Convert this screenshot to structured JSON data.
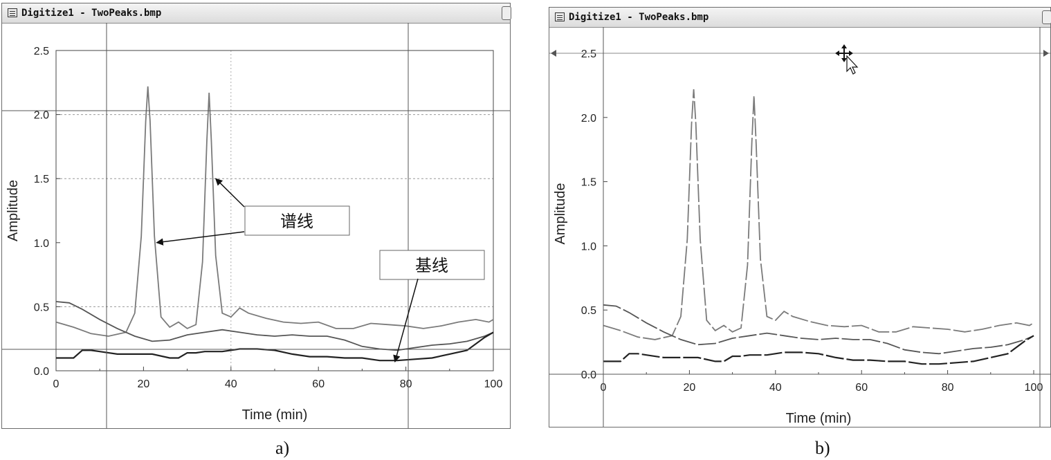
{
  "windows": [
    {
      "title": "Digitize1 - TwoPeaks.bmp",
      "caption": "a)",
      "annotations": {
        "spectral_line": "谱线",
        "baseline": "基线"
      }
    },
    {
      "title": "Digitize1 - TwoPeaks.bmp",
      "caption": "b)"
    }
  ],
  "chart_data": [
    {
      "type": "line",
      "xlabel": "Time (min)",
      "ylabel": "Amplitude",
      "xlim": [
        0,
        100
      ],
      "ylim": [
        0,
        2.5
      ],
      "x_ticks": [
        "0",
        "20",
        "40",
        "60",
        "80",
        "100"
      ],
      "y_ticks": [
        "0.0",
        "0.5",
        "1.0",
        "1.5",
        "2.0",
        "2.5"
      ],
      "grid": "dashed at y=0.5,1.5,2.0 and x=40",
      "series": [
        {
          "x": [
            0,
            4,
            8,
            12,
            16,
            18,
            19.5,
            20.5,
            21,
            21.5,
            22.5,
            24,
            26,
            28,
            30,
            32,
            33.5,
            34.5,
            35,
            35.5,
            36.5,
            38,
            40,
            42,
            44,
            48,
            52,
            56,
            60,
            64,
            68,
            72,
            76,
            80,
            84,
            88,
            92,
            96,
            99,
            100
          ],
          "y": [
            0.38,
            0.34,
            0.29,
            0.27,
            0.3,
            0.45,
            1.05,
            1.95,
            2.22,
            1.95,
            1.05,
            0.42,
            0.34,
            0.38,
            0.33,
            0.36,
            0.85,
            1.8,
            2.17,
            1.8,
            0.9,
            0.45,
            0.42,
            0.49,
            0.45,
            0.41,
            0.38,
            0.37,
            0.38,
            0.33,
            0.33,
            0.37,
            0.36,
            0.35,
            0.33,
            0.35,
            0.38,
            0.4,
            0.38,
            0.4
          ]
        },
        {
          "x": [
            0,
            3,
            6,
            10,
            14,
            18,
            22,
            26,
            30,
            34,
            38,
            42,
            46,
            50,
            54,
            58,
            62,
            66,
            70,
            74,
            78,
            82,
            86,
            90,
            94,
            98,
            100
          ],
          "y": [
            0.54,
            0.53,
            0.48,
            0.4,
            0.33,
            0.27,
            0.23,
            0.24,
            0.28,
            0.3,
            0.32,
            0.3,
            0.28,
            0.27,
            0.28,
            0.27,
            0.27,
            0.24,
            0.19,
            0.17,
            0.16,
            0.18,
            0.2,
            0.21,
            0.23,
            0.27,
            0.3
          ]
        },
        {
          "x": [
            0,
            4,
            6,
            8,
            10,
            14,
            18,
            22,
            26,
            28,
            30,
            32,
            34,
            38,
            42,
            46,
            50,
            54,
            58,
            62,
            66,
            70,
            74,
            78,
            82,
            86,
            90,
            94,
            98,
            100
          ],
          "y": [
            0.1,
            0.1,
            0.16,
            0.16,
            0.15,
            0.13,
            0.13,
            0.13,
            0.1,
            0.1,
            0.14,
            0.14,
            0.15,
            0.15,
            0.17,
            0.17,
            0.16,
            0.13,
            0.11,
            0.11,
            0.1,
            0.1,
            0.08,
            0.08,
            0.09,
            0.1,
            0.13,
            0.16,
            0.26,
            0.3
          ]
        }
      ]
    },
    {
      "type": "line",
      "xlabel": "Time (min)",
      "ylabel": "Amplitude",
      "xlim": [
        0,
        100
      ],
      "ylim": [
        0,
        2.5
      ],
      "x_ticks": [
        "0",
        "20",
        "40",
        "60",
        "80",
        "100"
      ],
      "y_ticks": [
        "0.0",
        "0.5",
        "1.0",
        "1.5",
        "2.0",
        "2.5"
      ],
      "grid": "off",
      "series": [
        {
          "x": [
            0,
            4,
            8,
            12,
            16,
            18,
            19.5,
            20.5,
            21,
            21.5,
            22.5,
            24,
            26,
            28,
            30,
            32,
            33.5,
            34.5,
            35,
            35.5,
            36.5,
            38,
            40,
            42,
            44,
            48,
            52,
            56,
            60,
            64,
            68,
            72,
            76,
            80,
            84,
            88,
            92,
            96,
            99,
            100
          ],
          "y": [
            0.38,
            0.34,
            0.29,
            0.27,
            0.3,
            0.45,
            1.05,
            1.95,
            2.22,
            1.95,
            1.05,
            0.42,
            0.34,
            0.38,
            0.33,
            0.36,
            0.85,
            1.8,
            2.17,
            1.8,
            0.9,
            0.45,
            0.42,
            0.49,
            0.45,
            0.41,
            0.38,
            0.37,
            0.38,
            0.33,
            0.33,
            0.37,
            0.36,
            0.35,
            0.33,
            0.35,
            0.38,
            0.4,
            0.38,
            0.4
          ]
        },
        {
          "x": [
            0,
            3,
            6,
            10,
            14,
            18,
            22,
            26,
            30,
            34,
            38,
            42,
            46,
            50,
            54,
            58,
            62,
            66,
            70,
            74,
            78,
            82,
            86,
            90,
            94,
            98,
            100
          ],
          "y": [
            0.54,
            0.53,
            0.48,
            0.4,
            0.33,
            0.27,
            0.23,
            0.24,
            0.28,
            0.3,
            0.32,
            0.3,
            0.28,
            0.27,
            0.28,
            0.27,
            0.27,
            0.24,
            0.19,
            0.17,
            0.16,
            0.18,
            0.2,
            0.21,
            0.23,
            0.27,
            0.3
          ]
        },
        {
          "x": [
            0,
            4,
            6,
            8,
            10,
            14,
            18,
            22,
            26,
            28,
            30,
            32,
            34,
            38,
            42,
            46,
            50,
            54,
            58,
            62,
            66,
            70,
            74,
            78,
            82,
            86,
            90,
            94,
            98,
            100
          ],
          "y": [
            0.1,
            0.1,
            0.16,
            0.16,
            0.15,
            0.13,
            0.13,
            0.13,
            0.1,
            0.1,
            0.14,
            0.14,
            0.15,
            0.15,
            0.17,
            0.17,
            0.16,
            0.13,
            0.11,
            0.11,
            0.1,
            0.1,
            0.08,
            0.08,
            0.09,
            0.1,
            0.13,
            0.16,
            0.26,
            0.3
          ]
        }
      ]
    }
  ],
  "style": {
    "line_colors": [
      "#7a7a7a",
      "#555555",
      "#222222"
    ],
    "grid_color": "#999999"
  }
}
